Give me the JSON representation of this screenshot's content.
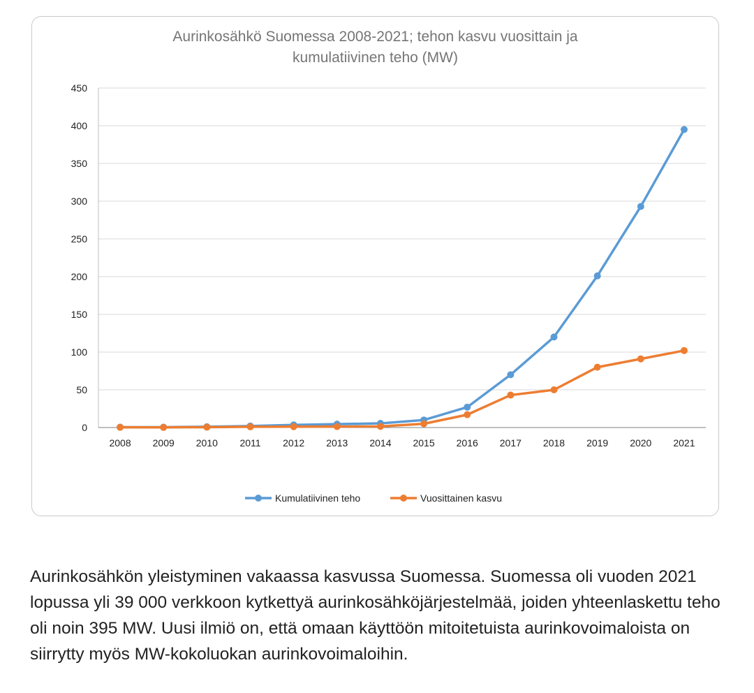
{
  "chart_data": {
    "type": "line",
    "title_lines": [
      "Aurinkosähkö Suomessa 2008-2021; tehon kasvu vuosittain ja",
      "kumulatiivinen teho (MW)"
    ],
    "xlabel": "",
    "ylabel": "",
    "categories": [
      "2008",
      "2009",
      "2010",
      "2011",
      "2012",
      "2013",
      "2014",
      "2015",
      "2016",
      "2017",
      "2018",
      "2019",
      "2020",
      "2021"
    ],
    "ylim": [
      0,
      450
    ],
    "yticks": [
      0,
      50,
      100,
      150,
      200,
      250,
      300,
      350,
      400,
      450
    ],
    "grid": true,
    "legend_position": "bottom",
    "series": [
      {
        "name": "Kumulatiivinen teho",
        "color": "#5B9BD5",
        "values": [
          0.5,
          0.5,
          1,
          2,
          3.5,
          4.5,
          5.5,
          10,
          27,
          70,
          120,
          201,
          293,
          395
        ]
      },
      {
        "name": "Vuosittainen kasvu",
        "color": "#ED7D31",
        "values": [
          0.3,
          0.2,
          0.5,
          1,
          1.2,
          1.3,
          1.5,
          5,
          17,
          43,
          50,
          80,
          91,
          102
        ]
      }
    ]
  },
  "caption": "Aurinkosähkön yleistyminen vakaassa kasvussa Suomessa. Suomessa oli vuoden 2021 lopussa yli 39 000 verkkoon kytkettyä aurinkosähköjärjestelmää, joiden yhteenlaskettu teho oli noin 395 MW. Uusi ilmiö on, että omaan käyttöön mitoitetuista aurinkovoimaloista on siirrytty myös MW-kokoluokan aurinkovoimaloihin."
}
